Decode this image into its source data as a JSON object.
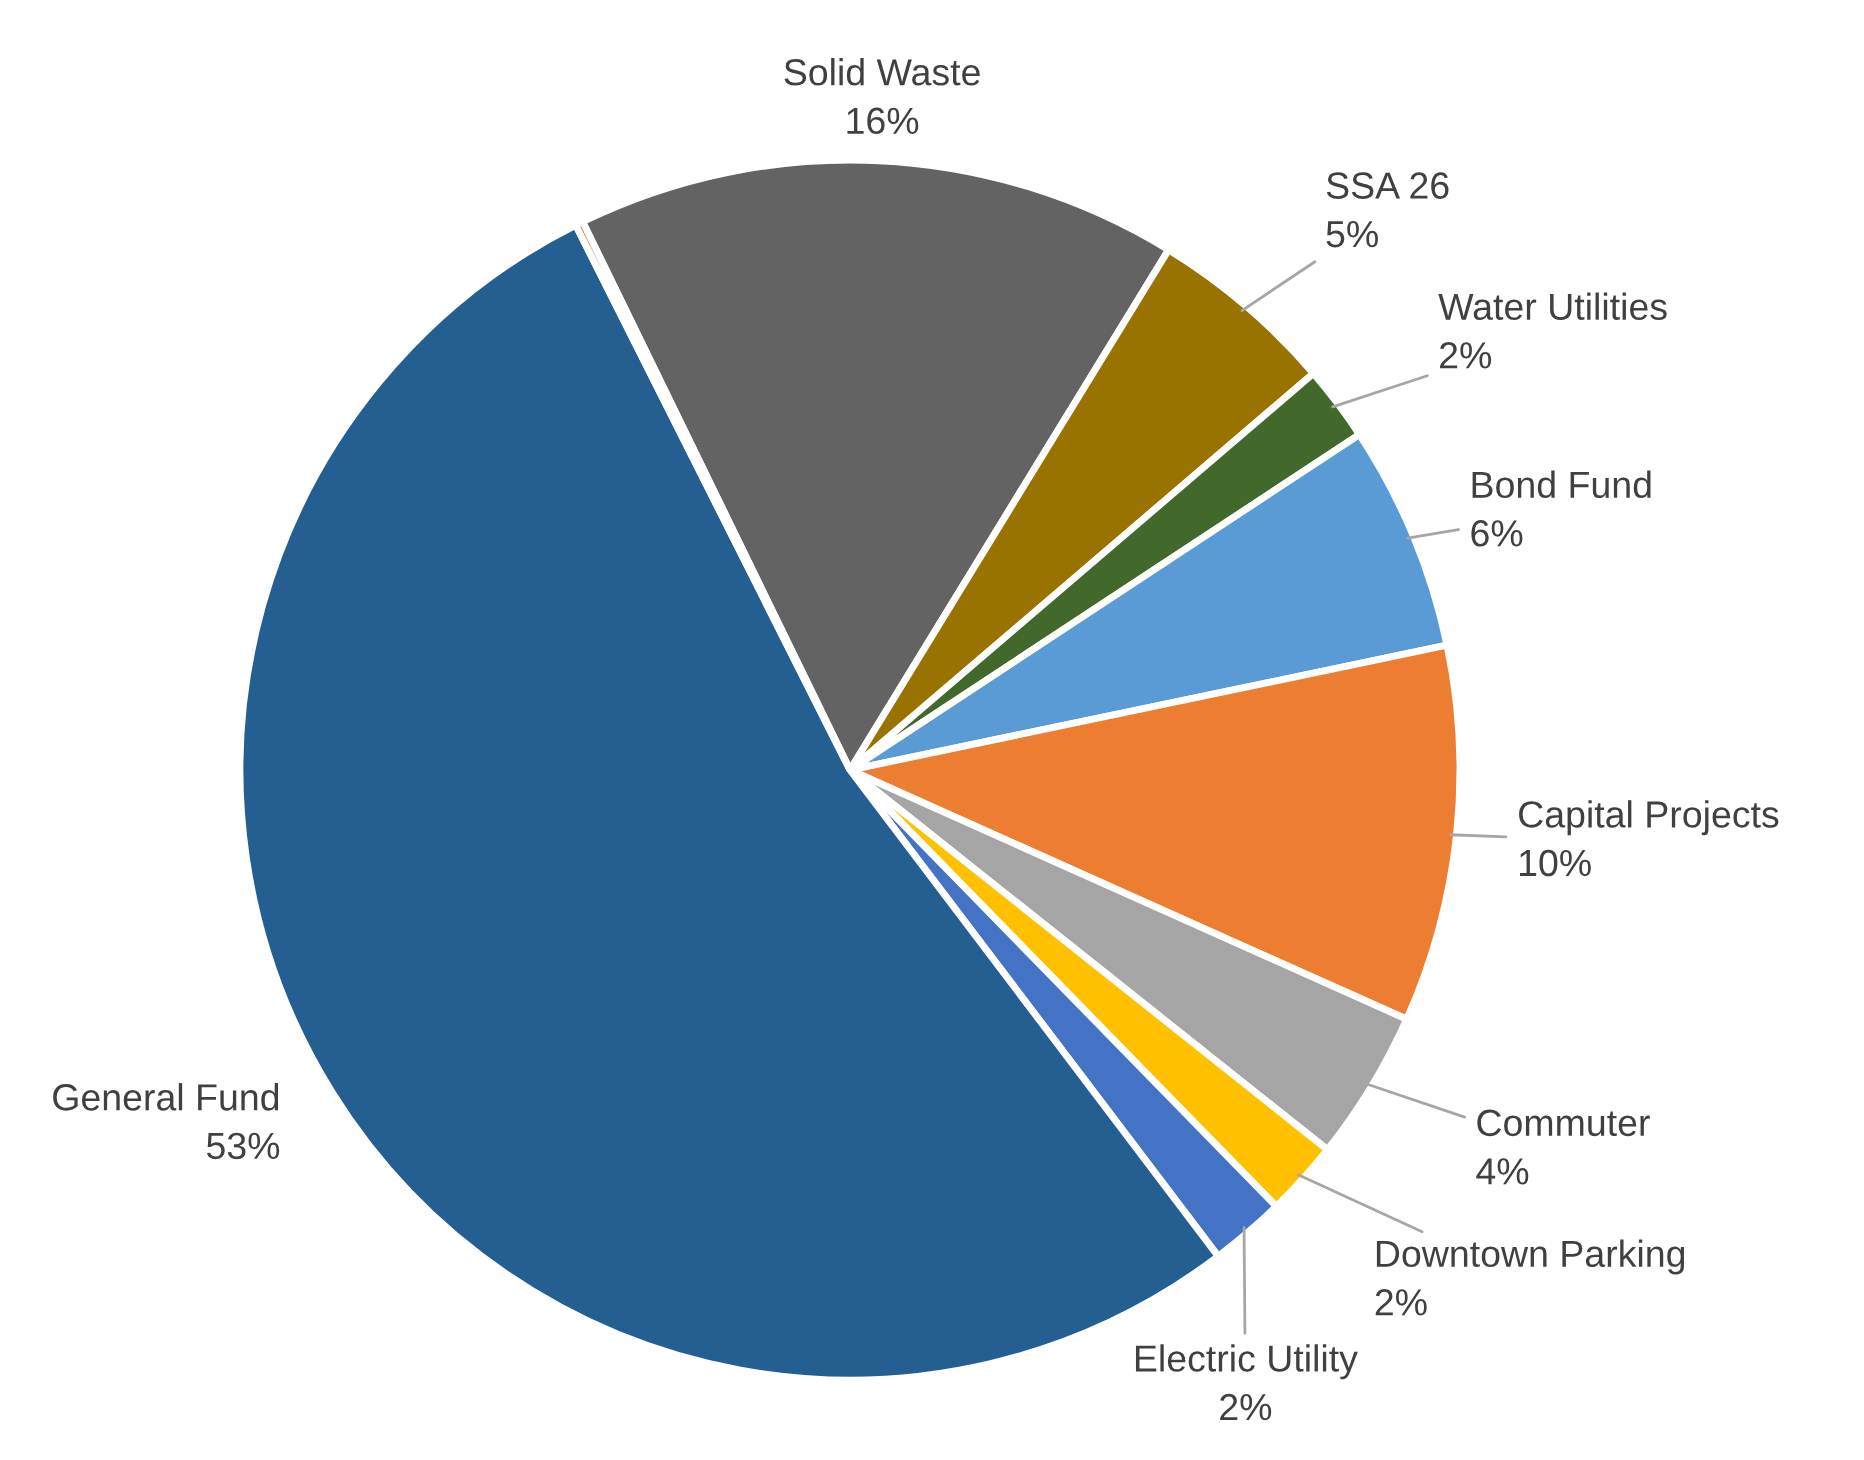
{
  "chart_data": {
    "type": "pie",
    "categories": [
      "Solid Waste",
      "SSA 26",
      "Water Utilities",
      "Bond Fund",
      "Capital Projects",
      "Commuter",
      "Downtown Parking",
      "Electric Utility",
      "General Fund",
      null
    ],
    "values": [
      16,
      5,
      2,
      6,
      10,
      4,
      2,
      2,
      53,
      0.2
    ],
    "value_labels": [
      "16%",
      "5%",
      "2%",
      "6%",
      "10%",
      "4%",
      "2%",
      "2%",
      "53%",
      null
    ],
    "colors": [
      "#636363",
      "#997300",
      "#43682b",
      "#5b9bd5",
      "#ed7d31",
      "#a5a5a5",
      "#ffc000",
      "#4472c4",
      "#255e91",
      "#9e480e"
    ],
    "legend": false
  }
}
